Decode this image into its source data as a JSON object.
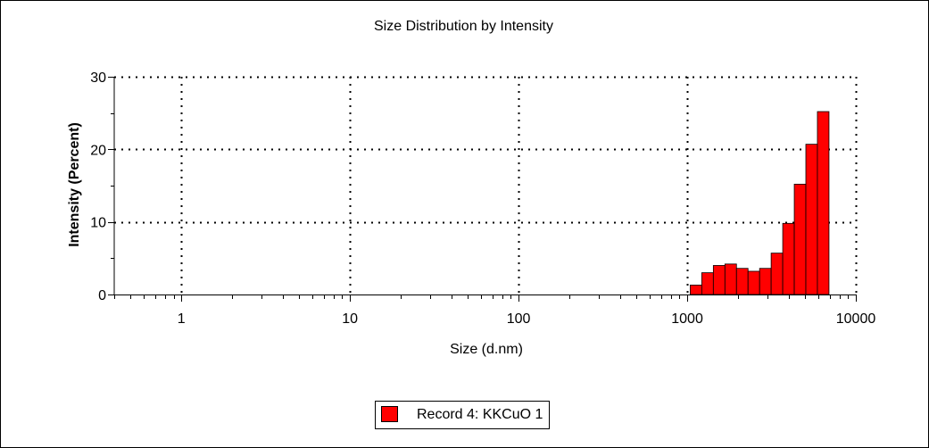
{
  "chart_data": {
    "type": "bar",
    "title": "Size Distribution by Intensity",
    "xlabel": "Size (d.nm)",
    "ylabel": "Intensity (Percent)",
    "x_scale": "log",
    "xlim": [
      0.4,
      10000
    ],
    "ylim": [
      0,
      30
    ],
    "x_ticks": [
      1,
      10,
      100,
      1000,
      10000
    ],
    "x_tick_labels": [
      "1",
      "10",
      "100",
      "1000",
      "10000"
    ],
    "y_ticks": [
      0,
      10,
      20,
      30
    ],
    "y_tick_labels": [
      "0",
      "10",
      "20",
      "30"
    ],
    "grid": true,
    "legend_position": "bottom-center",
    "series": [
      {
        "name": "Record 4: KKCuO 1",
        "color": "#ff0000",
        "bin_edges": [
          1042,
          1220,
          1429,
          1674,
          1960,
          2295,
          2688,
          3147,
          3686,
          4316,
          5054,
          5919
        ],
        "values": [
          1.3,
          3.0,
          4.0,
          4.2,
          3.6,
          3.2,
          3.6,
          5.7,
          9.8,
          15.2,
          20.7,
          25.2
        ]
      }
    ]
  },
  "legend": {
    "label": "Record 4: KKCuO 1"
  }
}
